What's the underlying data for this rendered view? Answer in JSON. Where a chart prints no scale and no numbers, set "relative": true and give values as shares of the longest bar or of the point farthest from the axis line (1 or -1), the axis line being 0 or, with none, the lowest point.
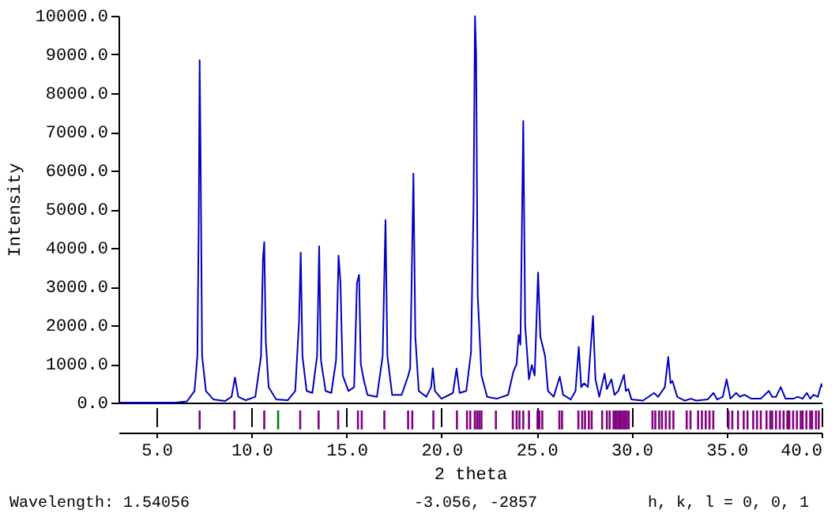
{
  "chart_data": [
    {
      "type": "line",
      "ylabel": "Intensity",
      "xlim": [
        3,
        40
      ],
      "ylim": [
        0,
        10000
      ],
      "tick_labels": "y",
      "grid": false,
      "yticks": [
        {
          "value": 0,
          "label": "0.0"
        },
        {
          "value": 1000,
          "label": "1000.0"
        },
        {
          "value": 2000,
          "label": "2000.0"
        },
        {
          "value": 3000,
          "label": "3000.0"
        },
        {
          "value": 4000,
          "label": "4000.0"
        },
        {
          "value": 5000,
          "label": "5000.0"
        },
        {
          "value": 6000,
          "label": "6000.0"
        },
        {
          "value": 7000,
          "label": "7000.0"
        },
        {
          "value": 8000,
          "label": "8000.0"
        },
        {
          "value": 9000,
          "label": "9000.0"
        },
        {
          "value": 10000,
          "label": "10000.0"
        }
      ],
      "x": [
        3.0,
        6.0,
        6.6,
        7.0,
        7.15,
        7.22,
        7.27,
        7.32,
        7.4,
        7.6,
        8.0,
        8.6,
        8.95,
        9.13,
        9.3,
        9.7,
        10.2,
        10.5,
        10.6,
        10.67,
        10.75,
        10.9,
        11.3,
        11.9,
        12.3,
        12.5,
        12.59,
        12.68,
        12.9,
        13.2,
        13.45,
        13.56,
        13.65,
        13.9,
        14.2,
        14.45,
        14.58,
        14.68,
        14.8,
        15.1,
        15.4,
        15.55,
        15.66,
        15.75,
        15.9,
        16.1,
        16.6,
        16.9,
        17.05,
        17.15,
        17.4,
        17.9,
        18.25,
        18.35,
        18.52,
        18.62,
        18.8,
        19.2,
        19.45,
        19.54,
        19.65,
        20.0,
        20.6,
        20.79,
        20.95,
        21.3,
        21.55,
        21.68,
        21.76,
        21.82,
        21.9,
        22.1,
        22.4,
        22.9,
        23.5,
        23.78,
        23.95,
        24.06,
        24.15,
        24.3,
        24.4,
        24.6,
        24.75,
        24.9,
        25.08,
        25.2,
        25.3,
        25.45,
        25.6,
        25.9,
        26.22,
        26.4,
        26.8,
        27.05,
        27.22,
        27.35,
        27.5,
        27.7,
        27.97,
        28.1,
        28.3,
        28.58,
        28.7,
        28.94,
        29.1,
        29.3,
        29.6,
        29.7,
        29.83,
        30.0,
        30.6,
        31.18,
        31.4,
        31.75,
        31.93,
        32.05,
        32.15,
        32.4,
        32.8,
        33.12,
        33.4,
        34.0,
        34.31,
        34.5,
        34.8,
        35.0,
        35.2,
        35.5,
        35.7,
        35.94,
        36.3,
        36.8,
        37.22,
        37.4,
        37.6,
        37.85,
        38.1,
        38.5,
        38.75,
        39.0,
        39.22,
        39.4,
        39.57,
        39.8,
        39.99,
        40.0
      ],
      "series": [
        {
          "color": "#0000c0",
          "values": [
            0,
            0,
            30,
            300,
            1200,
            4600,
            8850,
            6300,
            1200,
            300,
            80,
            40,
            150,
            650,
            150,
            60,
            150,
            1200,
            3700,
            4150,
            1600,
            400,
            80,
            60,
            300,
            2100,
            3880,
            1200,
            300,
            250,
            1200,
            4040,
            1100,
            300,
            250,
            1100,
            3800,
            3100,
            700,
            300,
            400,
            3100,
            3300,
            1000,
            600,
            200,
            150,
            1200,
            4720,
            1200,
            200,
            200,
            700,
            900,
            5920,
            1700,
            300,
            150,
            400,
            890,
            300,
            100,
            250,
            880,
            250,
            300,
            1300,
            5000,
            9990,
            9000,
            2800,
            700,
            150,
            100,
            200,
            800,
            1000,
            1750,
            1500,
            7280,
            2000,
            600,
            970,
            700,
            3360,
            1700,
            1500,
            1200,
            300,
            150,
            670,
            200,
            80,
            300,
            1440,
            400,
            500,
            400,
            2240,
            600,
            150,
            750,
            350,
            600,
            200,
            300,
            720,
            300,
            350,
            80,
            50,
            250,
            150,
            400,
            1180,
            500,
            560,
            150,
            50,
            100,
            50,
            80,
            250,
            80,
            150,
            600,
            100,
            250,
            150,
            200,
            100,
            100,
            300,
            150,
            150,
            400,
            100,
            100,
            150,
            100,
            250,
            100,
            200,
            150,
            480,
            400
          ]
        }
      ]
    },
    {
      "type": "bar",
      "xlabel": "2 theta",
      "relative": true,
      "xlim": [
        3,
        40
      ],
      "tick_labels": "x",
      "grid": "x",
      "xticks": [
        {
          "value": 5,
          "label": "5.0"
        },
        {
          "value": 10,
          "label": "10.0"
        },
        {
          "value": 15,
          "label": "15.0"
        },
        {
          "value": 20,
          "label": "20.0"
        },
        {
          "value": 25,
          "label": "25.0"
        },
        {
          "value": 30,
          "label": "30.0"
        },
        {
          "value": 35,
          "label": "35.0"
        },
        {
          "value": 40,
          "label": "40.0"
        }
      ],
      "annotations": [
        "Wavelength: 1.54056",
        "-3.056, -2857",
        "h, k, l = 0, 0, 1"
      ],
      "series": [
        {
          "color": "#800080",
          "x": [
            7.27,
            9.1,
            10.67,
            12.56,
            13.53,
            14.56,
            15.6,
            15.8,
            16.99,
            18.24,
            18.46,
            19.57,
            20.81,
            21.34,
            21.51,
            21.75,
            21.87,
            21.98,
            22.1,
            22.86,
            23.75,
            23.95,
            24.1,
            24.3,
            24.6,
            25.05,
            25.15,
            25.3,
            26.2,
            26.34,
            27.2,
            27.4,
            27.55,
            27.75,
            27.9,
            28.45,
            28.7,
            28.85,
            29.05,
            29.15,
            29.25,
            29.35,
            29.45,
            29.55,
            29.65,
            29.75,
            29.85,
            31.1,
            31.25,
            31.45,
            31.6,
            31.8,
            32.0,
            32.2,
            32.9,
            33.1,
            33.5,
            33.7,
            33.9,
            34.1,
            34.3,
            35.1,
            35.3,
            35.6,
            35.9,
            36.1,
            36.4,
            36.6,
            36.8,
            37.1,
            37.3,
            37.4,
            37.6,
            37.8,
            38.0,
            38.2,
            38.3,
            38.5,
            38.7,
            38.9,
            39.0,
            39.2,
            39.4,
            39.5,
            39.7,
            39.85
          ],
          "values": [
            1,
            1,
            1,
            1,
            1,
            1,
            1,
            1,
            1,
            1,
            1,
            1,
            1,
            1,
            1,
            1,
            1,
            1,
            1,
            1,
            1,
            1,
            1,
            1,
            1,
            1,
            1,
            1,
            1,
            1,
            1,
            1,
            1,
            1,
            1,
            1,
            1,
            1,
            1,
            1,
            1,
            1,
            1,
            1,
            1,
            1,
            1,
            1,
            1,
            1,
            1,
            1,
            1,
            1,
            1,
            1,
            1,
            1,
            1,
            1,
            1,
            1,
            1,
            1,
            1,
            1,
            1,
            1,
            1,
            1,
            1,
            1,
            1,
            1,
            1,
            1,
            1,
            1,
            1,
            1,
            1,
            1,
            1,
            1,
            1,
            1
          ]
        },
        {
          "color": "#008000",
          "x": [
            11.4
          ],
          "values": [
            1
          ]
        }
      ]
    }
  ]
}
